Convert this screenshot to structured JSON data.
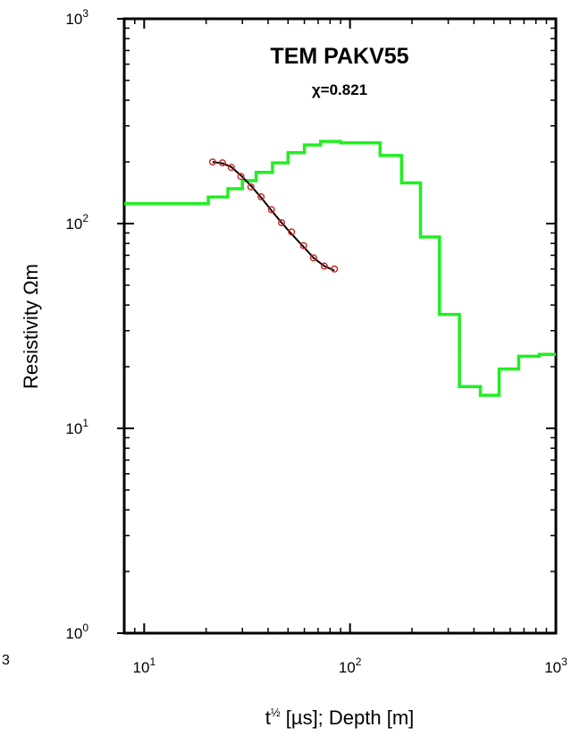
{
  "chart_data": {
    "type": "line",
    "title": "TEM PAKV55",
    "subtitle": "χ=0.821",
    "xlabel": "t½ [µs]; Depth [m]",
    "ylabel": "Resistivity Ωm",
    "xscale": "log",
    "yscale": "log",
    "xlim": [
      8,
      1000
    ],
    "ylim": [
      1,
      1000
    ],
    "grid": false,
    "x_ticks": [
      {
        "base": "10",
        "exp": "1",
        "value": 10
      },
      {
        "base": "10",
        "exp": "2",
        "value": 100
      },
      {
        "base": "10",
        "exp": "3",
        "value": 1000
      }
    ],
    "y_ticks": [
      {
        "base": "10",
        "exp": "0",
        "value": 1
      },
      {
        "base": "10",
        "exp": "1",
        "value": 10
      },
      {
        "base": "10",
        "exp": "2",
        "value": 100
      },
      {
        "base": "10",
        "exp": "3",
        "value": 1000
      }
    ],
    "series": [
      {
        "kind": "model-step",
        "color": "#22ee22",
        "x": [
          8,
          20.5,
          20.5,
          25.5,
          25.5,
          30,
          30,
          35,
          35,
          42,
          42,
          50,
          50,
          60,
          60,
          72,
          72,
          90,
          90,
          140,
          140,
          178,
          178,
          220,
          220,
          272,
          272,
          340,
          340,
          430,
          430,
          530,
          530,
          660,
          660,
          830,
          830,
          1000
        ],
        "y": [
          125,
          125,
          135,
          135,
          148,
          148,
          162,
          162,
          178,
          178,
          198,
          198,
          222,
          222,
          242,
          242,
          252,
          252,
          248,
          248,
          215,
          215,
          158,
          158,
          86,
          86,
          36,
          36,
          16,
          16,
          14.5,
          14.5,
          19.5,
          19.5,
          22.5,
          22.5,
          23,
          23
        ]
      },
      {
        "kind": "observed-points",
        "color": "#cc2222",
        "x": [
          21.5,
          24,
          26.5,
          29.5,
          33,
          37,
          41.5,
          46.5,
          52,
          59.5,
          66.5,
          75,
          84
        ],
        "y": [
          200,
          198,
          188,
          170,
          151,
          135,
          117,
          101,
          91,
          78,
          68,
          62,
          60
        ]
      },
      {
        "kind": "fitted-curve",
        "color": "#000000",
        "x": [
          21.5,
          24,
          26.5,
          29.5,
          33,
          37,
          41.5,
          46.5,
          52,
          59.5,
          66.5,
          75,
          84
        ],
        "y": [
          200,
          197,
          189,
          172,
          153,
          134,
          116,
          101,
          89,
          77,
          68,
          62,
          59
        ]
      }
    ]
  },
  "left_edge": {
    "partial_exponent": "3"
  }
}
